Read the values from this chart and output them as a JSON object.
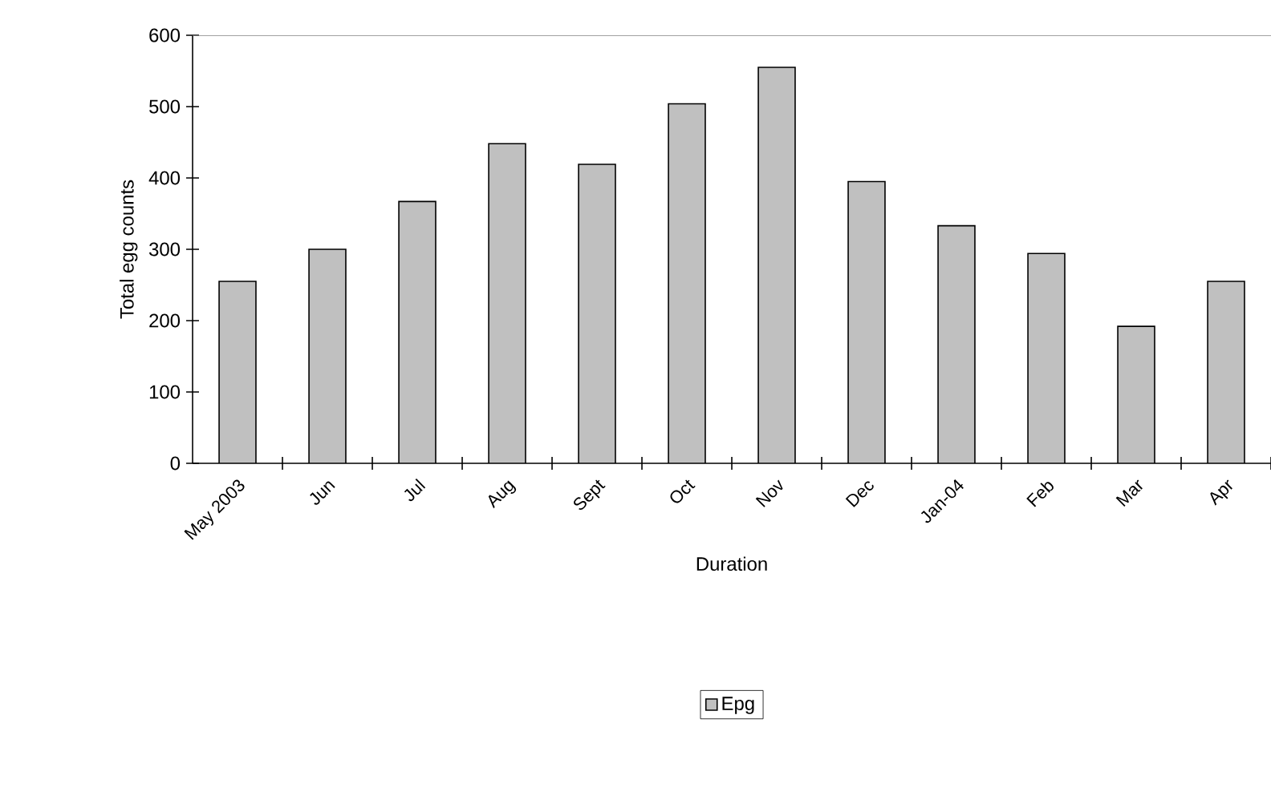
{
  "chart_data": {
    "type": "bar",
    "xlabel": "Duration",
    "ylabel": "Total egg counts",
    "categories": [
      "May 2003",
      "Jun",
      "Jul",
      "Aug",
      "Sept",
      "Oct",
      "Nov",
      "Dec",
      "Jan-04",
      "Feb",
      "Mar",
      "Apr"
    ],
    "series": [
      {
        "name": "Epg",
        "color": "#c0c0c0",
        "values": [
          255,
          300,
          367,
          448,
          419,
          504,
          555,
          395,
          333,
          294,
          192,
          255
        ]
      }
    ],
    "ylim": [
      0,
      600
    ],
    "yticks": [
      0,
      100,
      200,
      300,
      400,
      500,
      600
    ],
    "legend": "bottom"
  }
}
